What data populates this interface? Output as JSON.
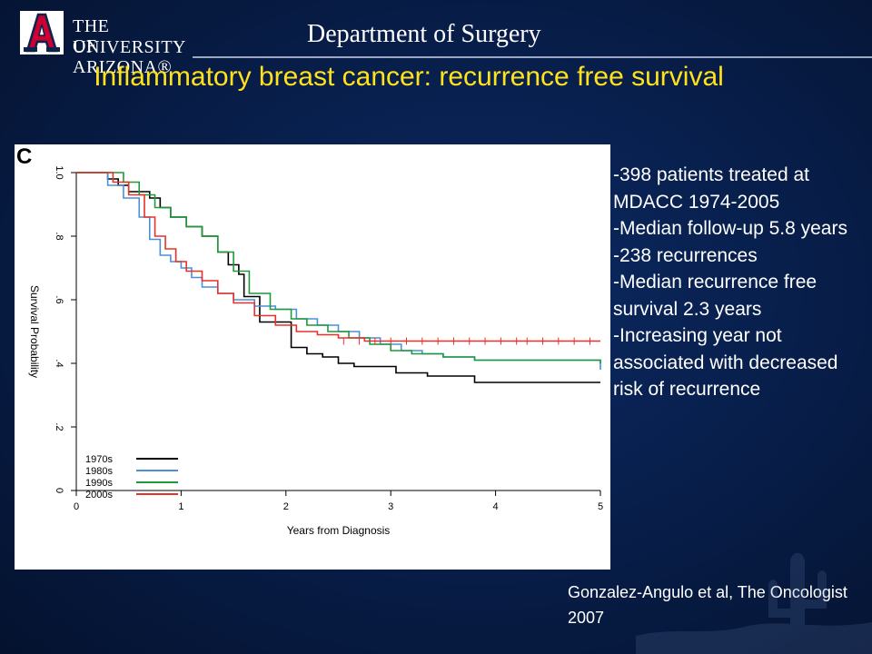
{
  "header": {
    "university_line1": "THE UNIVERSITY",
    "university_line2": "OF ARIZONA®",
    "department": "Department of Surgery"
  },
  "title": "Inflammatory breast cancer: recurrence free survival",
  "bullets": [
    "-398 patients treated at MDACC 1974-2005",
    "-Median follow-up 5.8 years",
    "-238 recurrences",
    "-Median recurrence free survival 2.3 years",
    "-Increasing year not associated with decreased risk of recurrence"
  ],
  "citation": "Gonzalez-Angulo et al, The Oncologist 2007",
  "colors": {
    "title": "#ffe21c",
    "background": "#081f4c",
    "s1970s": "#000000",
    "s1980s": "#4a90d9",
    "s1990s": "#1f9a3a",
    "s2000s": "#e8312a"
  },
  "chart_data": {
    "type": "line",
    "panel_label": "C",
    "xlabel": "Years from Diagnosis",
    "ylabel": "Survival Probability",
    "xlim": [
      0,
      5
    ],
    "ylim": [
      0,
      1
    ],
    "xticks": [
      "0",
      "1",
      "2",
      "3",
      "4",
      "5"
    ],
    "yticks": [
      "0",
      ".2",
      ".4",
      ".6",
      ".8",
      "1.0"
    ],
    "legend_position": "bottom-left",
    "series": [
      {
        "name": "1970s",
        "color": "#000000",
        "points": [
          [
            0,
            1.0
          ],
          [
            0.25,
            1.0
          ],
          [
            0.3,
            0.98
          ],
          [
            0.4,
            0.96
          ],
          [
            0.5,
            0.94
          ],
          [
            0.7,
            0.92
          ],
          [
            0.8,
            0.89
          ],
          [
            0.9,
            0.86
          ],
          [
            1.05,
            0.83
          ],
          [
            1.2,
            0.8
          ],
          [
            1.35,
            0.75
          ],
          [
            1.45,
            0.71
          ],
          [
            1.55,
            0.68
          ],
          [
            1.6,
            0.61
          ],
          [
            1.75,
            0.53
          ],
          [
            2.0,
            0.53
          ],
          [
            2.05,
            0.45
          ],
          [
            2.2,
            0.43
          ],
          [
            2.35,
            0.42
          ],
          [
            2.5,
            0.4
          ],
          [
            2.65,
            0.39
          ],
          [
            3.0,
            0.39
          ],
          [
            3.05,
            0.37
          ],
          [
            3.3,
            0.37
          ],
          [
            3.35,
            0.36
          ],
          [
            3.75,
            0.36
          ],
          [
            3.8,
            0.34
          ],
          [
            5.0,
            0.34
          ]
        ]
      },
      {
        "name": "1980s",
        "color": "#4a90d9",
        "points": [
          [
            0,
            1.0
          ],
          [
            0.2,
            1.0
          ],
          [
            0.3,
            0.96
          ],
          [
            0.45,
            0.92
          ],
          [
            0.6,
            0.86
          ],
          [
            0.7,
            0.79
          ],
          [
            0.8,
            0.74
          ],
          [
            0.9,
            0.72
          ],
          [
            1.0,
            0.7
          ],
          [
            1.1,
            0.67
          ],
          [
            1.2,
            0.64
          ],
          [
            1.35,
            0.62
          ],
          [
            1.5,
            0.6
          ],
          [
            1.7,
            0.58
          ],
          [
            1.9,
            0.57
          ],
          [
            2.1,
            0.54
          ],
          [
            2.3,
            0.52
          ],
          [
            2.5,
            0.5
          ],
          [
            2.7,
            0.48
          ],
          [
            2.9,
            0.46
          ],
          [
            3.1,
            0.44
          ],
          [
            3.3,
            0.43
          ],
          [
            3.5,
            0.42
          ],
          [
            3.8,
            0.41
          ],
          [
            4.2,
            0.41
          ],
          [
            5.0,
            0.38
          ]
        ]
      },
      {
        "name": "1990s",
        "color": "#1f9a3a",
        "points": [
          [
            0,
            1.0
          ],
          [
            0.3,
            1.0
          ],
          [
            0.45,
            0.97
          ],
          [
            0.6,
            0.93
          ],
          [
            0.75,
            0.89
          ],
          [
            0.9,
            0.86
          ],
          [
            1.05,
            0.83
          ],
          [
            1.2,
            0.8
          ],
          [
            1.35,
            0.75
          ],
          [
            1.5,
            0.69
          ],
          [
            1.65,
            0.62
          ],
          [
            1.85,
            0.57
          ],
          [
            2.05,
            0.54
          ],
          [
            2.2,
            0.52
          ],
          [
            2.4,
            0.5
          ],
          [
            2.6,
            0.48
          ],
          [
            2.8,
            0.46
          ],
          [
            3.0,
            0.44
          ],
          [
            3.2,
            0.43
          ],
          [
            3.5,
            0.42
          ],
          [
            3.8,
            0.41
          ],
          [
            4.3,
            0.41
          ],
          [
            5.0,
            0.4
          ]
        ]
      },
      {
        "name": "2000s",
        "color": "#e8312a",
        "points": [
          [
            0,
            1.0
          ],
          [
            0.2,
            1.0
          ],
          [
            0.35,
            0.97
          ],
          [
            0.5,
            0.93
          ],
          [
            0.65,
            0.86
          ],
          [
            0.75,
            0.8
          ],
          [
            0.85,
            0.76
          ],
          [
            0.95,
            0.72
          ],
          [
            1.05,
            0.69
          ],
          [
            1.2,
            0.66
          ],
          [
            1.35,
            0.62
          ],
          [
            1.5,
            0.59
          ],
          [
            1.7,
            0.55
          ],
          [
            1.9,
            0.52
          ],
          [
            2.1,
            0.5
          ],
          [
            2.3,
            0.49
          ],
          [
            2.5,
            0.48
          ],
          [
            2.75,
            0.47
          ],
          [
            5.0,
            0.47
          ]
        ]
      }
    ]
  }
}
